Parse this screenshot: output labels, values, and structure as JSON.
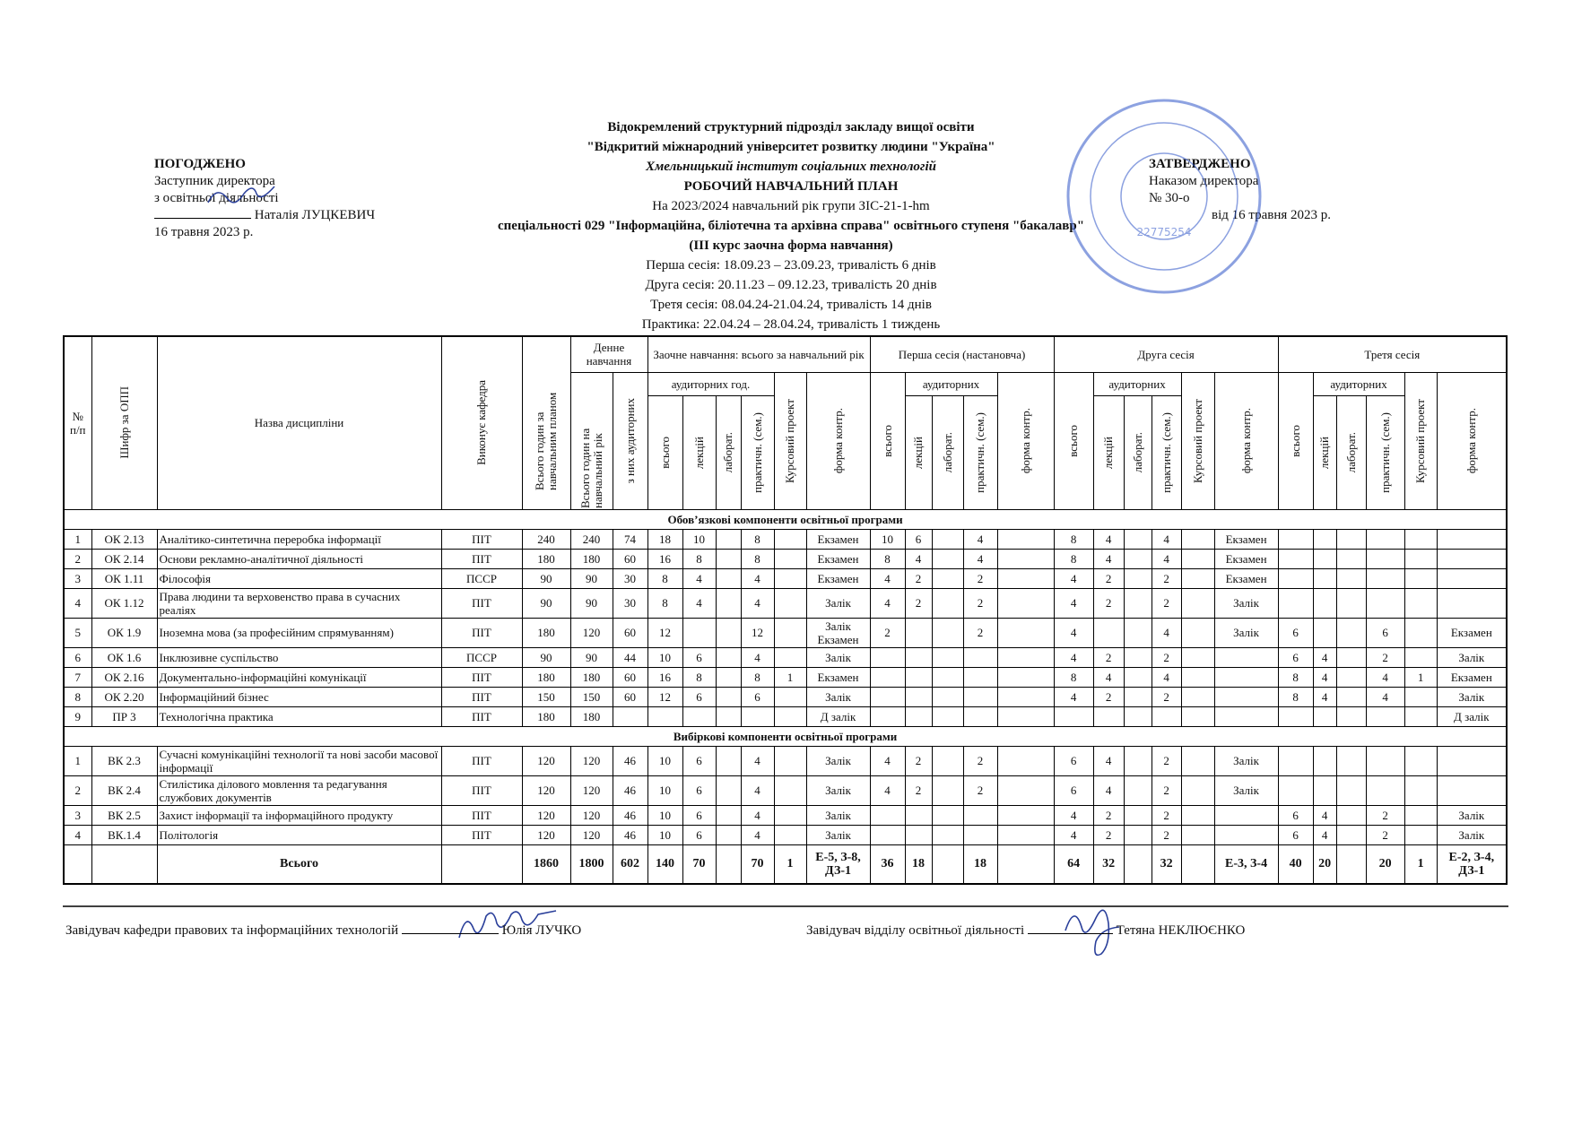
{
  "approved_left": {
    "title": "ПОГОДЖЕНО",
    "line1": "Заступник директора",
    "line2": "з освітньої діяльності",
    "name": "Наталія ЛУЦКЕВИЧ",
    "date": "16 травня 2023 р."
  },
  "approved_right": {
    "title": "ЗАТВЕРДЖЕНО",
    "line1": "Наказом директора",
    "line2": "№ 30-о",
    "date": "від 16 травня 2023 р."
  },
  "stamp": {
    "code": "22775254"
  },
  "header": {
    "lines": [
      "Відокремлений структурний підрозділ закладу вищої освіти",
      "\"Відкритий міжнародний університет розвитку людини \"Україна\"",
      "Хмельницький інститут соціальних технологій",
      "РОБОЧИЙ НАВЧАЛЬНИЙ ПЛАН",
      "На 2023/2024 навчальний рік групи ЗІС-21-1-hm",
      "спеціальності 029 \"Інформаційна, біліотечна та архівна справа\" освітнього ступеня \"бакалавр\"",
      "(ІІІ курс заочна форма навчання)",
      "Перша сесія: 18.09.23 – 23.09.23, тривалість 6 днів",
      "Друга сесія: 20.11.23 – 09.12.23, тривалість 20 днів",
      "Третя сесія: 08.04.24-21.04.24, тривалість 14 днів",
      "Практика: 22.04.24 – 28.04.24, тривалість 1 тиждень"
    ]
  },
  "table": {
    "head": {
      "num": "№ п/п",
      "code": "Шифр за ОПП",
      "name": "Назва дисципліни",
      "dept": "Виконує кафедра",
      "plan_hours": "Всього годин за навчальним планом",
      "day": "Денне навчання",
      "year_hours": "Всього годин на навчальний рік",
      "aud_of": "з них аудиторних",
      "extramural": "Заочне навчання: всього за навчальний рік",
      "session1": "Перша сесія (настановча)",
      "session2": "Друга сесія",
      "session3": "Третя сесія",
      "aud_hours": "аудиторних год.",
      "aud": "аудиторних",
      "total": "всього",
      "lect": "лекцій",
      "lab": "лаборат.",
      "pract": "практичн. (сем.)",
      "course": "Курсовий проект",
      "control": "форма контр."
    },
    "sections": [
      {
        "title": "Обов’язкові компоненти освітньої програми",
        "rows": [
          [
            "1",
            "ОК 2.13",
            "Аналітико-синтетична переробка інформації",
            "ПІТ",
            "240",
            "240",
            "74",
            "18",
            "10",
            null,
            "8",
            null,
            "Екзамен",
            "10",
            "6",
            null,
            "4",
            null,
            "8",
            "4",
            null,
            "4",
            null,
            "Екзамен",
            null,
            null,
            null,
            null,
            null,
            null
          ],
          [
            "2",
            "ОК 2.14",
            "Основи рекламно-аналітичної діяльності",
            "ПІТ",
            "180",
            "180",
            "60",
            "16",
            "8",
            null,
            "8",
            null,
            "Екзамен",
            "8",
            "4",
            null,
            "4",
            null,
            "8",
            "4",
            null,
            "4",
            null,
            "Екзамен",
            null,
            null,
            null,
            null,
            null,
            null
          ],
          [
            "3",
            "ОК 1.11",
            "Філософія",
            "ПССР",
            "90",
            "90",
            "30",
            "8",
            "4",
            null,
            "4",
            null,
            "Екзамен",
            "4",
            "2",
            null,
            "2",
            null,
            "4",
            "2",
            null,
            "2",
            null,
            "Екзамен",
            null,
            null,
            null,
            null,
            null,
            null
          ],
          [
            "4",
            "ОК 1.12",
            "Права людини та верховенство права в сучасних реаліях",
            "ПІТ",
            "90",
            "90",
            "30",
            "8",
            "4",
            null,
            "4",
            null,
            "Залік",
            "4",
            "2",
            null,
            "2",
            null,
            "4",
            "2",
            null,
            "2",
            null,
            "Залік",
            null,
            null,
            null,
            null,
            null,
            null
          ],
          [
            "5",
            "ОК 1.9",
            "Іноземна мова (за професійним спрямуванням)",
            "ПІТ",
            "180",
            "120",
            "60",
            "12",
            null,
            null,
            "12",
            null,
            "Залік Екзамен",
            "2",
            null,
            null,
            "2",
            null,
            "4",
            null,
            null,
            "4",
            null,
            "Залік",
            "6",
            null,
            null,
            "6",
            null,
            "Екзамен"
          ],
          [
            "6",
            "ОК 1.6",
            "Інклюзивне суспільство",
            "ПССР",
            "90",
            "90",
            "44",
            "10",
            "6",
            null,
            "4",
            null,
            "Залік",
            null,
            null,
            null,
            null,
            null,
            "4",
            "2",
            null,
            "2",
            null,
            null,
            "6",
            "4",
            null,
            "2",
            null,
            "Залік"
          ],
          [
            "7",
            "ОК 2.16",
            "Документально-інформаційні комунікації",
            "ПІТ",
            "180",
            "180",
            "60",
            "16",
            "8",
            null,
            "8",
            "1",
            "Екзамен",
            null,
            null,
            null,
            null,
            null,
            "8",
            "4",
            null,
            "4",
            null,
            null,
            "8",
            "4",
            null,
            "4",
            "1",
            "Екзамен"
          ],
          [
            "8",
            "ОК 2.20",
            "Інформаційний бізнес",
            "ПІТ",
            "150",
            "150",
            "60",
            "12",
            "6",
            null,
            "6",
            null,
            "Залік",
            null,
            null,
            null,
            null,
            null,
            "4",
            "2",
            null,
            "2",
            null,
            null,
            "8",
            "4",
            null,
            "4",
            null,
            "Залік"
          ],
          [
            "9",
            "ПР 3",
            "Технологічна практика",
            "ПІТ",
            "180",
            "180",
            null,
            null,
            null,
            null,
            null,
            null,
            "Д залік",
            null,
            null,
            null,
            null,
            null,
            null,
            null,
            null,
            null,
            null,
            null,
            null,
            null,
            null,
            null,
            null,
            "Д залік"
          ]
        ]
      },
      {
        "title": "Вибіркові компоненти освітньої програми",
        "rows": [
          [
            "1",
            "ВК 2.3",
            "Сучасні комунікаційні технології та нові засоби масової інформації",
            "ПІТ",
            "120",
            "120",
            "46",
            "10",
            "6",
            null,
            "4",
            null,
            "Залік",
            "4",
            "2",
            null,
            "2",
            null,
            "6",
            "4",
            null,
            "2",
            null,
            "Залік",
            null,
            null,
            null,
            null,
            null,
            null
          ],
          [
            "2",
            "ВК 2.4",
            "Стилістика ділового мовлення та редагування службових документів",
            "ПІТ",
            "120",
            "120",
            "46",
            "10",
            "6",
            null,
            "4",
            null,
            "Залік",
            "4",
            "2",
            null,
            "2",
            null,
            "6",
            "4",
            null,
            "2",
            null,
            "Залік",
            null,
            null,
            null,
            null,
            null,
            null
          ],
          [
            "3",
            "ВК 2.5",
            "Захист інформації та інформаційного продукту",
            "ПІТ",
            "120",
            "120",
            "46",
            "10",
            "6",
            null,
            "4",
            null,
            "Залік",
            null,
            null,
            null,
            null,
            null,
            "4",
            "2",
            null,
            "2",
            null,
            null,
            "6",
            "4",
            null,
            "2",
            null,
            "Залік"
          ],
          [
            "4",
            "ВК.1.4",
            "Політологія",
            "ПІТ",
            "120",
            "120",
            "46",
            "10",
            "6",
            null,
            "4",
            null,
            "Залік",
            null,
            null,
            null,
            null,
            null,
            "4",
            "2",
            null,
            "2",
            null,
            null,
            "6",
            "4",
            null,
            "2",
            null,
            "Залік"
          ]
        ]
      }
    ],
    "total": [
      null,
      null,
      "Всього",
      null,
      "1860",
      "1800",
      "602",
      "140",
      "70",
      null,
      "70",
      "1",
      "Е-5, З-8, ДЗ-1",
      "36",
      "18",
      null,
      "18",
      null,
      "64",
      "32",
      null,
      "32",
      null,
      "Е-3, З-4",
      "40",
      "20",
      null,
      "20",
      "1",
      "Е-2, З-4, ДЗ-1"
    ]
  },
  "footer": {
    "left_title": "Завідувач кафедри правових та інформаційних технологій",
    "left_name": "Юлія ЛУЧКО",
    "right_title": "Завідувач відділу освітньої діяльності",
    "right_name": "Тетяна НЕКЛЮЄНКО"
  }
}
